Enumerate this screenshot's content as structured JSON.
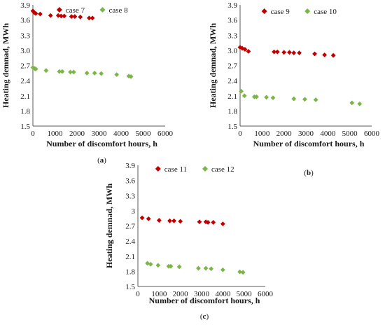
{
  "chart_data": [
    {
      "type": "scatter",
      "panel_label": "a",
      "xlabel": "Number of discomfort hours, h",
      "ylabel": "Heating demnad, MWh",
      "xlim": [
        0,
        6000
      ],
      "ylim": [
        1.5,
        3.9
      ],
      "xticks": [
        "0",
        "1000",
        "2000",
        "3000",
        "4000",
        "5000",
        "6000"
      ],
      "yticks": [
        "1.5",
        "1.8",
        "2.1",
        "2.4",
        "2.7",
        "3.0",
        "3.3",
        "3.6",
        "3.9"
      ],
      "grid": false,
      "legend_position": "top",
      "series": [
        {
          "name": "case 7",
          "color": "#c00000",
          "marker": "diamond",
          "points": [
            [
              0,
              3.78
            ],
            [
              60,
              3.75
            ],
            [
              130,
              3.73
            ],
            [
              330,
              3.72
            ],
            [
              800,
              3.69
            ],
            [
              1150,
              3.69
            ],
            [
              1280,
              3.68
            ],
            [
              1420,
              3.68
            ],
            [
              1750,
              3.67
            ],
            [
              1900,
              3.67
            ],
            [
              2150,
              3.66
            ],
            [
              2550,
              3.64
            ],
            [
              2700,
              3.64
            ]
          ]
        },
        {
          "name": "case 8",
          "color": "#7ab648",
          "marker": "diamond",
          "points": [
            [
              0,
              2.66
            ],
            [
              80,
              2.64
            ],
            [
              130,
              2.63
            ],
            [
              600,
              2.6
            ],
            [
              1200,
              2.58
            ],
            [
              1330,
              2.58
            ],
            [
              1700,
              2.57
            ],
            [
              1850,
              2.57
            ],
            [
              2450,
              2.55
            ],
            [
              2800,
              2.55
            ],
            [
              3100,
              2.54
            ],
            [
              3800,
              2.52
            ],
            [
              4350,
              2.49
            ],
            [
              4450,
              2.48
            ]
          ]
        }
      ]
    },
    {
      "type": "scatter",
      "panel_label": "b",
      "xlabel": "Number of discomfort hours, h",
      "ylabel": "Heating demnad, MWh",
      "xlim": [
        0,
        6000
      ],
      "ylim": [
        1.5,
        3.9
      ],
      "xticks": [
        "0",
        "1000",
        "2000",
        "3000",
        "4000",
        "5000",
        "6000"
      ],
      "yticks": [
        "1.5",
        "1.8",
        "2.1",
        "2.4",
        "2.7",
        "3.0",
        "3.3",
        "3.6",
        "3.9"
      ],
      "grid": false,
      "legend_position": "top",
      "series": [
        {
          "name": "case 9",
          "color": "#c00000",
          "marker": "diamond",
          "points": [
            [
              0,
              3.06
            ],
            [
              100,
              3.04
            ],
            [
              220,
              3.02
            ],
            [
              380,
              2.98
            ],
            [
              1550,
              2.97
            ],
            [
              1700,
              2.97
            ],
            [
              2000,
              2.96
            ],
            [
              2250,
              2.96
            ],
            [
              2450,
              2.95
            ],
            [
              2700,
              2.95
            ],
            [
              3400,
              2.93
            ],
            [
              3850,
              2.91
            ],
            [
              4250,
              2.9
            ]
          ]
        },
        {
          "name": "case 10",
          "color": "#7ab648",
          "marker": "diamond",
          "points": [
            [
              50,
              2.19
            ],
            [
              200,
              2.1
            ],
            [
              650,
              2.08
            ],
            [
              750,
              2.08
            ],
            [
              1200,
              2.07
            ],
            [
              1500,
              2.06
            ],
            [
              2450,
              2.04
            ],
            [
              2950,
              2.03
            ],
            [
              3450,
              2.02
            ],
            [
              5100,
              1.96
            ],
            [
              5450,
              1.94
            ]
          ]
        }
      ]
    },
    {
      "type": "scatter",
      "panel_label": "c",
      "xlabel": "Number of discomfort hours, h",
      "ylabel": "Heating demnad, MWh",
      "xlim": [
        0,
        6000
      ],
      "ylim": [
        1.5,
        3.9
      ],
      "xticks": [
        "0",
        "1000",
        "2000",
        "3000",
        "4000",
        "5000",
        "6000"
      ],
      "yticks": [
        "1.5",
        "1.8",
        "2.1",
        "2.4",
        "2.7",
        "3",
        "3.3",
        "3.6",
        "3.9"
      ],
      "grid": false,
      "legend_position": "top",
      "series": [
        {
          "name": "case 11",
          "color": "#c00000",
          "marker": "diamond",
          "points": [
            [
              200,
              2.86
            ],
            [
              500,
              2.84
            ],
            [
              1000,
              2.81
            ],
            [
              1500,
              2.8
            ],
            [
              1700,
              2.8
            ],
            [
              2000,
              2.79
            ],
            [
              2900,
              2.78
            ],
            [
              3200,
              2.78
            ],
            [
              3300,
              2.77
            ],
            [
              3550,
              2.77
            ],
            [
              4000,
              2.74
            ]
          ]
        },
        {
          "name": "case 12",
          "color": "#7ab648",
          "marker": "diamond",
          "points": [
            [
              450,
              1.96
            ],
            [
              600,
              1.94
            ],
            [
              950,
              1.92
            ],
            [
              1450,
              1.9
            ],
            [
              1550,
              1.9
            ],
            [
              1950,
              1.89
            ],
            [
              2850,
              1.86
            ],
            [
              3200,
              1.86
            ],
            [
              3450,
              1.85
            ],
            [
              4000,
              1.83
            ],
            [
              4800,
              1.79
            ],
            [
              4950,
              1.78
            ]
          ]
        }
      ]
    }
  ]
}
